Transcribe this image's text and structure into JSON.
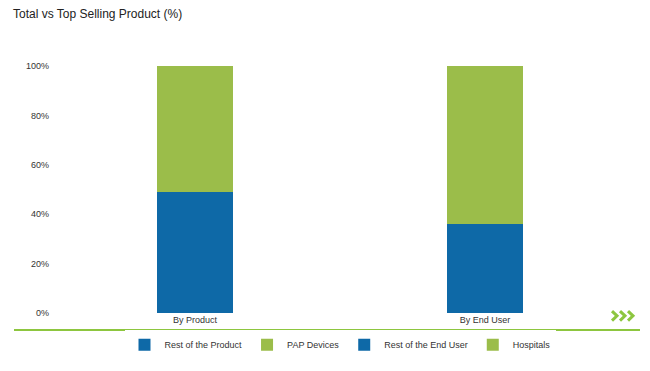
{
  "chart_data": {
    "type": "bar",
    "title": "Total vs Top Selling Product (%)",
    "stacked": true,
    "categories": [
      "By Product",
      "By End User"
    ],
    "series": [
      {
        "name": "Rest of the Product",
        "color": "#0e69a7",
        "values": [
          49,
          null
        ]
      },
      {
        "name": "PAP Devices",
        "color": "#9bbd4a",
        "values": [
          51,
          null
        ]
      },
      {
        "name": "Rest of the End User",
        "color": "#0e69a7",
        "values": [
          null,
          36
        ]
      },
      {
        "name": "Hospitals",
        "color": "#9bbd4a",
        "values": [
          null,
          64
        ]
      }
    ],
    "ylim": [
      0,
      100
    ],
    "yticks": [
      {
        "value": 0,
        "label": "0%"
      },
      {
        "value": 20,
        "label": "20%"
      },
      {
        "value": 40,
        "label": "40%"
      },
      {
        "value": 60,
        "label": "60%"
      },
      {
        "value": 80,
        "label": "80%"
      },
      {
        "value": 100,
        "label": "100%"
      }
    ],
    "grid": false,
    "legend": "bottom"
  }
}
